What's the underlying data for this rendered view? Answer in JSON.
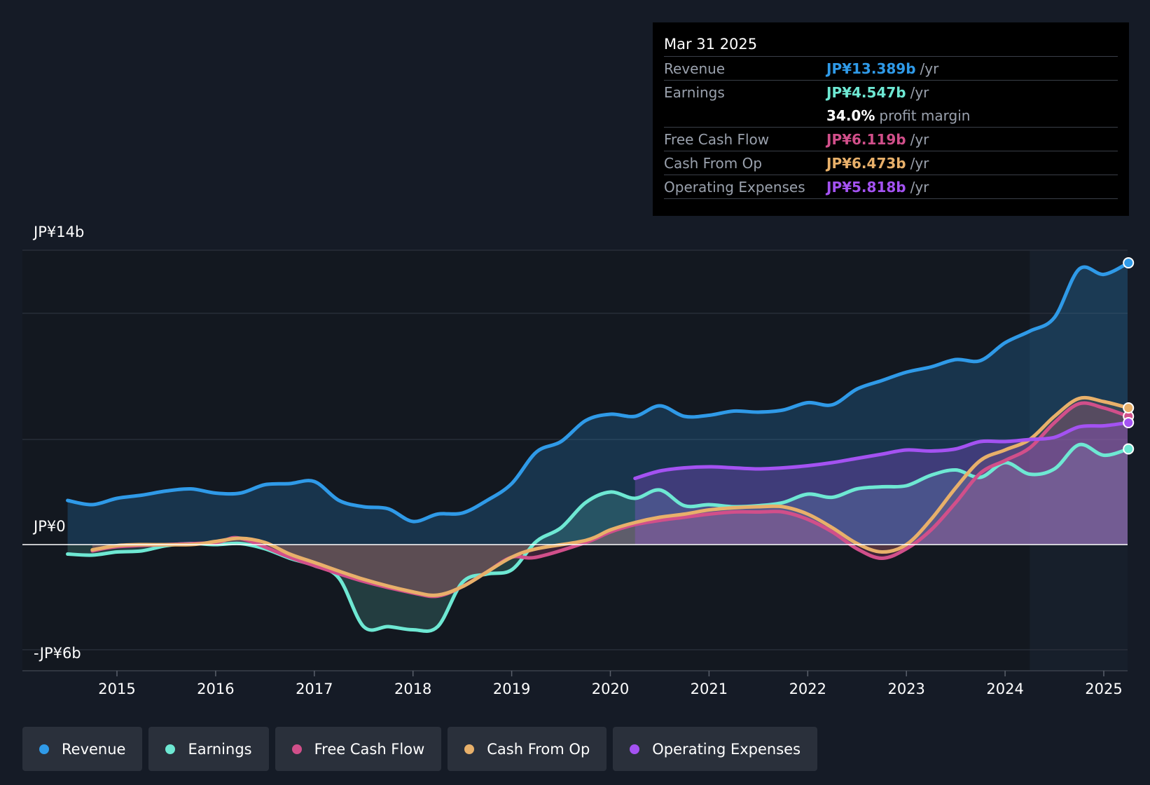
{
  "tooltip": {
    "date": "Mar 31 2025",
    "rows": [
      {
        "label": "Revenue",
        "value": "JP¥13.389b",
        "unit": "/yr",
        "color": "#2f9ae8"
      },
      {
        "label": "Earnings",
        "value": "JP¥4.547b",
        "unit": "/yr",
        "color": "#6ee8d3"
      },
      {
        "label": "",
        "value": "34.0%",
        "unit": "profit margin",
        "color": "#ffffff"
      },
      {
        "label": "Free Cash Flow",
        "value": "JP¥6.119b",
        "unit": "/yr",
        "color": "#d14f8a"
      },
      {
        "label": "Cash From Op",
        "value": "JP¥6.473b",
        "unit": "/yr",
        "color": "#e8b06a"
      },
      {
        "label": "Operating Expenses",
        "value": "JP¥5.818b",
        "unit": "/yr",
        "color": "#a452f2"
      }
    ]
  },
  "legend": [
    {
      "label": "Revenue",
      "color": "#2f9ae8"
    },
    {
      "label": "Earnings",
      "color": "#6ee8d3"
    },
    {
      "label": "Free Cash Flow",
      "color": "#d14f8a"
    },
    {
      "label": "Cash From Op",
      "color": "#e8b06a"
    },
    {
      "label": "Operating Expenses",
      "color": "#a452f2"
    }
  ],
  "chart_data": {
    "type": "line",
    "title": "",
    "ylabel": "",
    "xlabel": "",
    "y_tick_labels": {
      "top": "JP¥14b",
      "zero": "JP¥0",
      "bottom": "-JP¥6b"
    },
    "ylim": [
      -6,
      14
    ],
    "xlim": [
      2014.45,
      2025.25
    ],
    "x_ticks": [
      2015,
      2016,
      2017,
      2018,
      2019,
      2020,
      2021,
      2022,
      2023,
      2024,
      2025
    ],
    "highlight_from": 2024.25,
    "series": [
      {
        "name": "Revenue",
        "color": "#2f9ae8",
        "fill": true,
        "points": [
          [
            2014.5,
            2.1
          ],
          [
            2014.75,
            1.9
          ],
          [
            2015.0,
            2.2
          ],
          [
            2015.25,
            2.35
          ],
          [
            2015.5,
            2.55
          ],
          [
            2015.75,
            2.65
          ],
          [
            2016.0,
            2.45
          ],
          [
            2016.25,
            2.45
          ],
          [
            2016.5,
            2.85
          ],
          [
            2016.75,
            2.9
          ],
          [
            2017.0,
            3.0
          ],
          [
            2017.25,
            2.1
          ],
          [
            2017.5,
            1.8
          ],
          [
            2017.75,
            1.7
          ],
          [
            2018.0,
            1.1
          ],
          [
            2018.25,
            1.45
          ],
          [
            2018.5,
            1.5
          ],
          [
            2018.75,
            2.1
          ],
          [
            2019.0,
            2.9
          ],
          [
            2019.25,
            4.4
          ],
          [
            2019.5,
            4.9
          ],
          [
            2019.75,
            5.9
          ],
          [
            2020.0,
            6.2
          ],
          [
            2020.25,
            6.1
          ],
          [
            2020.5,
            6.6
          ],
          [
            2020.75,
            6.1
          ],
          [
            2021.0,
            6.15
          ],
          [
            2021.25,
            6.35
          ],
          [
            2021.5,
            6.3
          ],
          [
            2021.75,
            6.4
          ],
          [
            2022.0,
            6.75
          ],
          [
            2022.25,
            6.65
          ],
          [
            2022.5,
            7.4
          ],
          [
            2022.75,
            7.8
          ],
          [
            2023.0,
            8.2
          ],
          [
            2023.25,
            8.45
          ],
          [
            2023.5,
            8.8
          ],
          [
            2023.75,
            8.75
          ],
          [
            2024.0,
            9.6
          ],
          [
            2024.25,
            10.15
          ],
          [
            2024.5,
            10.8
          ],
          [
            2024.75,
            13.1
          ],
          [
            2025.0,
            12.85
          ],
          [
            2025.25,
            13.4
          ]
        ]
      },
      {
        "name": "Earnings",
        "color": "#6ee8d3",
        "fill": true,
        "points": [
          [
            2014.5,
            -0.45
          ],
          [
            2014.75,
            -0.5
          ],
          [
            2015.0,
            -0.35
          ],
          [
            2015.25,
            -0.3
          ],
          [
            2015.5,
            -0.05
          ],
          [
            2015.75,
            0.05
          ],
          [
            2016.0,
            0.0
          ],
          [
            2016.25,
            0.05
          ],
          [
            2016.5,
            -0.2
          ],
          [
            2016.75,
            -0.65
          ],
          [
            2017.0,
            -1.0
          ],
          [
            2017.25,
            -1.6
          ],
          [
            2017.5,
            -3.9
          ],
          [
            2017.75,
            -3.9
          ],
          [
            2018.0,
            -4.05
          ],
          [
            2018.25,
            -3.9
          ],
          [
            2018.5,
            -1.8
          ],
          [
            2018.75,
            -1.4
          ],
          [
            2019.0,
            -1.2
          ],
          [
            2019.25,
            0.15
          ],
          [
            2019.5,
            0.8
          ],
          [
            2019.75,
            2.0
          ],
          [
            2020.0,
            2.5
          ],
          [
            2020.25,
            2.2
          ],
          [
            2020.5,
            2.6
          ],
          [
            2020.75,
            1.85
          ],
          [
            2021.0,
            1.9
          ],
          [
            2021.25,
            1.8
          ],
          [
            2021.5,
            1.85
          ],
          [
            2021.75,
            2.0
          ],
          [
            2022.0,
            2.4
          ],
          [
            2022.25,
            2.25
          ],
          [
            2022.5,
            2.65
          ],
          [
            2022.75,
            2.75
          ],
          [
            2023.0,
            2.8
          ],
          [
            2023.25,
            3.3
          ],
          [
            2023.5,
            3.55
          ],
          [
            2023.75,
            3.2
          ],
          [
            2024.0,
            3.9
          ],
          [
            2024.25,
            3.35
          ],
          [
            2024.5,
            3.6
          ],
          [
            2024.75,
            4.75
          ],
          [
            2025.0,
            4.25
          ],
          [
            2025.25,
            4.55
          ]
        ]
      },
      {
        "name": "Free Cash Flow",
        "color": "#d14f8a",
        "fill": true,
        "points": [
          [
            2014.75,
            -0.3
          ],
          [
            2015.0,
            -0.1
          ],
          [
            2015.5,
            0.0
          ],
          [
            2016.0,
            0.1
          ],
          [
            2016.25,
            0.3
          ],
          [
            2016.75,
            -0.6
          ],
          [
            2017.0,
            -1.0
          ],
          [
            2017.5,
            -1.75
          ],
          [
            2018.0,
            -2.3
          ],
          [
            2018.25,
            -2.45
          ],
          [
            2018.5,
            -2.0
          ],
          [
            2018.75,
            -1.3
          ],
          [
            2019.0,
            -0.6
          ],
          [
            2019.25,
            -0.6
          ],
          [
            2019.75,
            0.1
          ],
          [
            2020.0,
            0.6
          ],
          [
            2020.25,
            0.95
          ],
          [
            2020.5,
            1.15
          ],
          [
            2020.75,
            1.3
          ],
          [
            2021.0,
            1.45
          ],
          [
            2021.25,
            1.55
          ],
          [
            2021.5,
            1.55
          ],
          [
            2021.75,
            1.55
          ],
          [
            2022.0,
            1.2
          ],
          [
            2022.25,
            0.6
          ],
          [
            2022.5,
            -0.2
          ],
          [
            2022.75,
            -0.65
          ],
          [
            2023.0,
            -0.2
          ],
          [
            2023.25,
            0.7
          ],
          [
            2023.5,
            2.0
          ],
          [
            2023.75,
            3.4
          ],
          [
            2024.0,
            4.0
          ],
          [
            2024.25,
            4.6
          ],
          [
            2024.5,
            5.8
          ],
          [
            2024.75,
            6.7
          ],
          [
            2025.0,
            6.5
          ],
          [
            2025.25,
            6.1
          ]
        ]
      },
      {
        "name": "Cash From Op",
        "color": "#e8b06a",
        "fill": true,
        "points": [
          [
            2014.75,
            -0.25
          ],
          [
            2015.0,
            -0.05
          ],
          [
            2015.25,
            0.0
          ],
          [
            2015.75,
            0.0
          ],
          [
            2016.0,
            0.15
          ],
          [
            2016.25,
            0.3
          ],
          [
            2016.5,
            0.1
          ],
          [
            2016.75,
            -0.45
          ],
          [
            2017.0,
            -0.85
          ],
          [
            2017.5,
            -1.65
          ],
          [
            2018.0,
            -2.25
          ],
          [
            2018.25,
            -2.4
          ],
          [
            2018.5,
            -2.0
          ],
          [
            2018.75,
            -1.3
          ],
          [
            2019.0,
            -0.6
          ],
          [
            2019.25,
            -0.2
          ],
          [
            2019.75,
            0.2
          ],
          [
            2020.0,
            0.7
          ],
          [
            2020.25,
            1.05
          ],
          [
            2020.5,
            1.3
          ],
          [
            2020.75,
            1.45
          ],
          [
            2021.0,
            1.65
          ],
          [
            2021.25,
            1.75
          ],
          [
            2021.5,
            1.8
          ],
          [
            2021.75,
            1.8
          ],
          [
            2022.0,
            1.45
          ],
          [
            2022.25,
            0.8
          ],
          [
            2022.5,
            0.05
          ],
          [
            2022.75,
            -0.35
          ],
          [
            2023.0,
            0.0
          ],
          [
            2023.25,
            1.2
          ],
          [
            2023.5,
            2.7
          ],
          [
            2023.75,
            4.0
          ],
          [
            2024.0,
            4.5
          ],
          [
            2024.25,
            5.0
          ],
          [
            2024.5,
            6.1
          ],
          [
            2024.75,
            6.95
          ],
          [
            2025.0,
            6.8
          ],
          [
            2025.25,
            6.5
          ]
        ]
      },
      {
        "name": "Operating Expenses",
        "color": "#a452f2",
        "fill": true,
        "points": [
          [
            2020.25,
            3.15
          ],
          [
            2020.5,
            3.5
          ],
          [
            2020.75,
            3.65
          ],
          [
            2021.0,
            3.7
          ],
          [
            2021.25,
            3.65
          ],
          [
            2021.5,
            3.6
          ],
          [
            2021.75,
            3.65
          ],
          [
            2022.0,
            3.75
          ],
          [
            2022.25,
            3.9
          ],
          [
            2022.5,
            4.1
          ],
          [
            2022.75,
            4.3
          ],
          [
            2023.0,
            4.5
          ],
          [
            2023.25,
            4.45
          ],
          [
            2023.5,
            4.55
          ],
          [
            2023.75,
            4.9
          ],
          [
            2024.0,
            4.9
          ],
          [
            2024.25,
            5.0
          ],
          [
            2024.5,
            5.1
          ],
          [
            2024.75,
            5.6
          ],
          [
            2025.0,
            5.65
          ],
          [
            2025.25,
            5.8
          ]
        ]
      }
    ]
  }
}
